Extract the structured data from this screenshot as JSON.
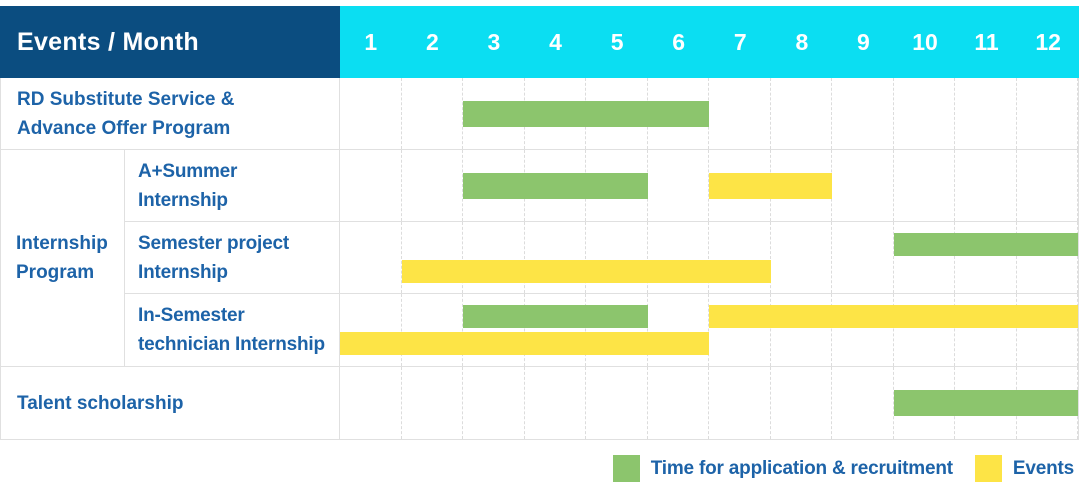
{
  "colors": {
    "header_bg": "#0B4D80",
    "months_bg": "#0BDEF2",
    "label_text": "#1D63A8",
    "grid_line": "#E0E0E0",
    "bar_green": "#8CC56D",
    "bar_yellow": "#FDE446"
  },
  "header": {
    "title": "Events / Month",
    "months": [
      "1",
      "2",
      "3",
      "4",
      "5",
      "6",
      "7",
      "8",
      "9",
      "10",
      "11",
      "12"
    ]
  },
  "legend": {
    "items": [
      {
        "key": "recruitment",
        "label": "Time for application & recruitment",
        "color": "#8CC56D"
      },
      {
        "key": "events",
        "label": "Events",
        "color": "#FDE446"
      }
    ]
  },
  "chart_data": {
    "type": "table",
    "subtype": "gantt",
    "title": "Events / Month",
    "x": {
      "label": "Month",
      "ticks": [
        1,
        2,
        3,
        4,
        5,
        6,
        7,
        8,
        9,
        10,
        11,
        12
      ],
      "range": [
        1,
        12
      ]
    },
    "legend_position": "bottom-right",
    "grid": "dashed-vertical-month-separators",
    "groups": [
      {
        "label": "Internship Program",
        "label_lines": [
          "Internship",
          "Program"
        ]
      }
    ],
    "rows": [
      {
        "group": "",
        "label": "RD Substitute Service & Advance Offer Program",
        "label_lines": [
          "RD Substitute Service &",
          "Advance Offer Program"
        ],
        "spans": [
          {
            "series": "recruitment",
            "start_month": 3,
            "end_month": 6,
            "lane": "center"
          }
        ]
      },
      {
        "group": "Internship Program",
        "label": "A+Summer Internship",
        "label_lines": [
          "A+Summer",
          "Internship"
        ],
        "spans": [
          {
            "series": "recruitment",
            "start_month": 3,
            "end_month": 5,
            "lane": "center"
          },
          {
            "series": "events",
            "start_month": 7,
            "end_month": 8,
            "lane": "center"
          }
        ]
      },
      {
        "group": "Internship Program",
        "label": "Semester project Internship",
        "label_lines": [
          "Semester project",
          "Internship"
        ],
        "spans": [
          {
            "series": "recruitment",
            "start_month": 10,
            "end_month": 12,
            "lane": "top"
          },
          {
            "series": "events",
            "start_month": 2,
            "end_month": 7,
            "lane": "bottom"
          }
        ]
      },
      {
        "group": "Internship Program",
        "label": "In-Semester technician Internship",
        "label_lines": [
          "In-Semester",
          "technician Internship"
        ],
        "spans": [
          {
            "series": "recruitment",
            "start_month": 3,
            "end_month": 5,
            "lane": "top"
          },
          {
            "series": "events",
            "start_month": 7,
            "end_month": 12,
            "lane": "top"
          },
          {
            "series": "events",
            "start_month": 1,
            "end_month": 6,
            "lane": "bottom"
          }
        ]
      },
      {
        "group": "",
        "label": "Talent scholarship",
        "label_lines": [
          "Talent scholarship"
        ],
        "spans": [
          {
            "series": "recruitment",
            "start_month": 10,
            "end_month": 12,
            "lane": "center"
          }
        ]
      }
    ]
  }
}
